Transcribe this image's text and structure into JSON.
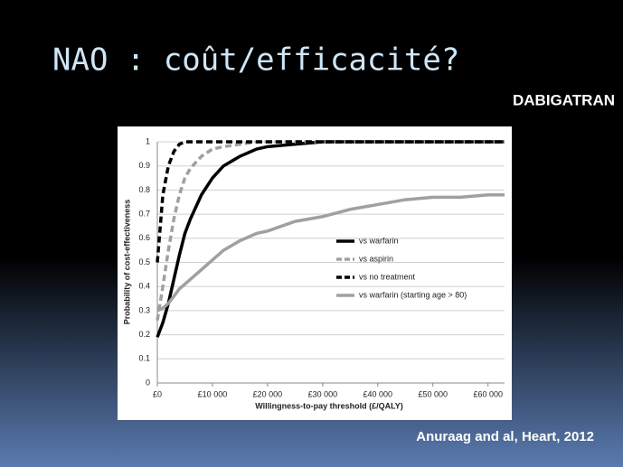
{
  "slide": {
    "title": "NAO : coût/efficacité?",
    "tag": "DABIGATRAN",
    "source": "Anuraag and al, Heart, 2012"
  },
  "chart_data": {
    "type": "line",
    "xlabel": "Willingness-to-pay threshold (£/QALY)",
    "ylabel": "Probability of cost-effectiveness",
    "x": [
      0,
      1000,
      2000,
      3000,
      4000,
      5000,
      6000,
      8000,
      10000,
      12000,
      15000,
      18000,
      20000,
      25000,
      30000,
      35000,
      40000,
      45000,
      50000,
      55000,
      60000,
      63000
    ],
    "series": [
      {
        "name": "vs warfarin",
        "color": "#000000",
        "dashed": false,
        "values": [
          0.19,
          0.25,
          0.33,
          0.43,
          0.53,
          0.62,
          0.68,
          0.78,
          0.85,
          0.9,
          0.94,
          0.97,
          0.98,
          0.99,
          1,
          1,
          1,
          1,
          1,
          1,
          1,
          1
        ]
      },
      {
        "name": "vs aspirin",
        "color": "#a0a0a0",
        "dashed": true,
        "values": [
          0.26,
          0.4,
          0.55,
          0.68,
          0.78,
          0.85,
          0.89,
          0.94,
          0.97,
          0.98,
          0.99,
          1,
          1,
          1,
          1,
          1,
          1,
          1,
          1,
          1,
          1,
          1
        ]
      },
      {
        "name": "vs no treatment",
        "color": "#000000",
        "dashed": true,
        "values": [
          0.5,
          0.78,
          0.9,
          0.96,
          0.99,
          1,
          1,
          1,
          1,
          1,
          1,
          1,
          1,
          1,
          1,
          1,
          1,
          1,
          1,
          1,
          1,
          1
        ]
      },
      {
        "name": "vs warfarin (starting age > 80)",
        "color": "#a0a0a0",
        "dashed": false,
        "values": [
          0.3,
          0.31,
          0.33,
          0.36,
          0.39,
          0.41,
          0.43,
          0.47,
          0.51,
          0.55,
          0.59,
          0.62,
          0.63,
          0.67,
          0.69,
          0.72,
          0.74,
          0.76,
          0.77,
          0.77,
          0.78,
          0.78
        ]
      }
    ],
    "xlim": [
      0,
      63000
    ],
    "ylim": [
      0,
      1
    ],
    "xticks": [
      {
        "value": 0,
        "label": "£0"
      },
      {
        "value": 10000,
        "label": "£10 000"
      },
      {
        "value": 20000,
        "label": "£20 000"
      },
      {
        "value": 30000,
        "label": "£30 000"
      },
      {
        "value": 40000,
        "label": "£40 000"
      },
      {
        "value": 50000,
        "label": "£50 000"
      },
      {
        "value": 60000,
        "label": "£60 000"
      }
    ],
    "yticks": [
      0,
      0.1,
      0.2,
      0.3,
      0.4,
      0.5,
      0.6,
      0.7,
      0.8,
      0.9,
      1
    ],
    "grid": true,
    "legend": "right"
  }
}
